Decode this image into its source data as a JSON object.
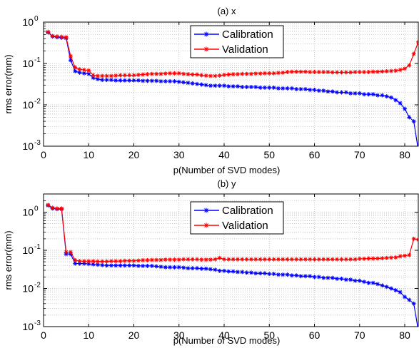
{
  "chart_data": [
    {
      "type": "line",
      "title": "(a) x",
      "xlabel": "p(Number of SVD modes)",
      "ylabel": "rms error(mm)",
      "xlim": [
        0,
        83
      ],
      "ylim": [
        0.001,
        1
      ],
      "yscale": "log",
      "xticks": [
        0,
        10,
        20,
        30,
        40,
        50,
        60,
        70,
        80
      ],
      "ytick_labels": [
        "10",
        "10",
        "10",
        "10"
      ],
      "ytick_exponents": [
        "-3",
        "-2",
        "-1",
        "0"
      ],
      "ytick_values": [
        0.001,
        0.01,
        0.1,
        1
      ],
      "grid": true,
      "legend_position": "top-center",
      "series": [
        {
          "name": "Calibration",
          "color": "#0000ff",
          "marker": "star",
          "x": [
            1,
            2,
            3,
            4,
            5,
            6,
            7,
            8,
            9,
            10,
            11,
            12,
            13,
            14,
            15,
            16,
            17,
            18,
            19,
            20,
            21,
            22,
            23,
            24,
            25,
            26,
            27,
            28,
            29,
            30,
            31,
            32,
            33,
            34,
            35,
            36,
            37,
            38,
            39,
            40,
            41,
            42,
            43,
            44,
            45,
            46,
            47,
            48,
            49,
            50,
            51,
            52,
            53,
            54,
            55,
            56,
            57,
            58,
            59,
            60,
            61,
            62,
            63,
            64,
            65,
            66,
            67,
            68,
            69,
            70,
            71,
            72,
            73,
            74,
            75,
            76,
            77,
            78,
            79,
            80,
            81,
            82,
            83
          ],
          "y": [
            0.56,
            0.45,
            0.43,
            0.42,
            0.41,
            0.12,
            0.065,
            0.06,
            0.058,
            0.056,
            0.045,
            0.042,
            0.04,
            0.04,
            0.04,
            0.039,
            0.039,
            0.039,
            0.039,
            0.039,
            0.039,
            0.038,
            0.038,
            0.038,
            0.038,
            0.037,
            0.037,
            0.037,
            0.037,
            0.036,
            0.035,
            0.034,
            0.033,
            0.032,
            0.031,
            0.03,
            0.029,
            0.029,
            0.029,
            0.029,
            0.028,
            0.028,
            0.028,
            0.027,
            0.027,
            0.027,
            0.027,
            0.026,
            0.026,
            0.026,
            0.026,
            0.025,
            0.025,
            0.025,
            0.025,
            0.024,
            0.024,
            0.024,
            0.023,
            0.023,
            0.022,
            0.022,
            0.021,
            0.021,
            0.02,
            0.02,
            0.02,
            0.019,
            0.019,
            0.019,
            0.018,
            0.018,
            0.018,
            0.017,
            0.017,
            0.016,
            0.015,
            0.013,
            0.011,
            0.008,
            0.005,
            0.004,
            0.0008
          ]
        },
        {
          "name": "Validation",
          "color": "#ff0000",
          "marker": "star",
          "x": [
            1,
            2,
            3,
            4,
            5,
            6,
            7,
            8,
            9,
            10,
            11,
            12,
            13,
            14,
            15,
            16,
            17,
            18,
            19,
            20,
            21,
            22,
            23,
            24,
            25,
            26,
            27,
            28,
            29,
            30,
            31,
            32,
            33,
            34,
            35,
            36,
            37,
            38,
            39,
            40,
            41,
            42,
            43,
            44,
            45,
            46,
            47,
            48,
            49,
            50,
            51,
            52,
            53,
            54,
            55,
            56,
            57,
            58,
            59,
            60,
            61,
            62,
            63,
            64,
            65,
            66,
            67,
            68,
            69,
            70,
            71,
            72,
            73,
            74,
            75,
            76,
            77,
            78,
            79,
            80,
            81,
            82,
            83
          ],
          "y": [
            0.58,
            0.46,
            0.45,
            0.44,
            0.43,
            0.15,
            0.08,
            0.072,
            0.07,
            0.068,
            0.052,
            0.05,
            0.05,
            0.05,
            0.05,
            0.051,
            0.052,
            0.052,
            0.052,
            0.052,
            0.053,
            0.054,
            0.055,
            0.056,
            0.056,
            0.056,
            0.057,
            0.058,
            0.058,
            0.058,
            0.056,
            0.055,
            0.054,
            0.054,
            0.052,
            0.051,
            0.05,
            0.05,
            0.051,
            0.053,
            0.054,
            0.055,
            0.055,
            0.056,
            0.056,
            0.056,
            0.057,
            0.057,
            0.058,
            0.058,
            0.058,
            0.059,
            0.06,
            0.062,
            0.063,
            0.063,
            0.063,
            0.063,
            0.062,
            0.062,
            0.062,
            0.062,
            0.062,
            0.061,
            0.061,
            0.061,
            0.061,
            0.061,
            0.062,
            0.062,
            0.062,
            0.062,
            0.063,
            0.063,
            0.064,
            0.065,
            0.066,
            0.067,
            0.07,
            0.075,
            0.09,
            0.17,
            0.33
          ]
        }
      ]
    },
    {
      "type": "line",
      "title": "(b) y",
      "xlabel": "p(Number of SVD modes)",
      "ylabel": "rms error(mm)",
      "xlim": [
        0,
        83
      ],
      "ylim": [
        0.001,
        3
      ],
      "yscale": "log",
      "xticks": [
        0,
        10,
        20,
        30,
        40,
        50,
        60,
        70,
        80
      ],
      "ytick_labels": [
        "10",
        "10",
        "10",
        "10"
      ],
      "ytick_exponents": [
        "-3",
        "-2",
        "-1",
        "0"
      ],
      "ytick_values": [
        0.001,
        0.01,
        0.1,
        1
      ],
      "grid": true,
      "legend_position": "top-center",
      "series": [
        {
          "name": "Calibration",
          "color": "#0000ff",
          "marker": "star",
          "x": [
            1,
            2,
            3,
            4,
            5,
            6,
            7,
            8,
            9,
            10,
            11,
            12,
            13,
            14,
            15,
            16,
            17,
            18,
            19,
            20,
            21,
            22,
            23,
            24,
            25,
            26,
            27,
            28,
            29,
            30,
            31,
            32,
            33,
            34,
            35,
            36,
            37,
            38,
            39,
            40,
            41,
            42,
            43,
            44,
            45,
            46,
            47,
            48,
            49,
            50,
            51,
            52,
            53,
            54,
            55,
            56,
            57,
            58,
            59,
            60,
            61,
            62,
            63,
            64,
            65,
            66,
            67,
            68,
            69,
            70,
            71,
            72,
            73,
            74,
            75,
            76,
            77,
            78,
            79,
            80,
            81,
            82,
            83
          ],
          "y": [
            1.5,
            1.25,
            1.2,
            1.2,
            0.08,
            0.08,
            0.045,
            0.045,
            0.045,
            0.044,
            0.043,
            0.042,
            0.041,
            0.04,
            0.04,
            0.04,
            0.04,
            0.04,
            0.04,
            0.04,
            0.039,
            0.039,
            0.039,
            0.039,
            0.038,
            0.037,
            0.036,
            0.036,
            0.036,
            0.036,
            0.035,
            0.034,
            0.034,
            0.034,
            0.033,
            0.033,
            0.032,
            0.031,
            0.029,
            0.029,
            0.028,
            0.028,
            0.027,
            0.027,
            0.026,
            0.026,
            0.025,
            0.025,
            0.025,
            0.024,
            0.024,
            0.023,
            0.023,
            0.023,
            0.022,
            0.022,
            0.021,
            0.021,
            0.021,
            0.02,
            0.02,
            0.019,
            0.019,
            0.019,
            0.018,
            0.018,
            0.017,
            0.017,
            0.016,
            0.016,
            0.015,
            0.014,
            0.014,
            0.013,
            0.012,
            0.011,
            0.01,
            0.009,
            0.008,
            0.006,
            0.005,
            0.004,
            0.0008
          ]
        },
        {
          "name": "Validation",
          "color": "#ff0000",
          "marker": "star",
          "x": [
            1,
            2,
            3,
            4,
            5,
            6,
            7,
            8,
            9,
            10,
            11,
            12,
            13,
            14,
            15,
            16,
            17,
            18,
            19,
            20,
            21,
            22,
            23,
            24,
            25,
            26,
            27,
            28,
            29,
            30,
            31,
            32,
            33,
            34,
            35,
            36,
            37,
            38,
            39,
            40,
            41,
            42,
            43,
            44,
            45,
            46,
            47,
            48,
            49,
            50,
            51,
            52,
            53,
            54,
            55,
            56,
            57,
            58,
            59,
            60,
            61,
            62,
            63,
            64,
            65,
            66,
            67,
            68,
            69,
            70,
            71,
            72,
            73,
            74,
            75,
            76,
            77,
            78,
            79,
            80,
            81,
            82,
            83
          ],
          "y": [
            1.55,
            1.3,
            1.25,
            1.25,
            0.09,
            0.09,
            0.055,
            0.052,
            0.052,
            0.052,
            0.052,
            0.051,
            0.051,
            0.051,
            0.052,
            0.052,
            0.052,
            0.053,
            0.053,
            0.053,
            0.054,
            0.055,
            0.055,
            0.056,
            0.056,
            0.056,
            0.057,
            0.057,
            0.057,
            0.057,
            0.058,
            0.058,
            0.058,
            0.058,
            0.057,
            0.057,
            0.057,
            0.058,
            0.063,
            0.058,
            0.058,
            0.058,
            0.058,
            0.058,
            0.058,
            0.058,
            0.058,
            0.058,
            0.058,
            0.058,
            0.058,
            0.058,
            0.058,
            0.058,
            0.058,
            0.058,
            0.058,
            0.058,
            0.058,
            0.058,
            0.058,
            0.058,
            0.058,
            0.058,
            0.058,
            0.058,
            0.058,
            0.058,
            0.058,
            0.06,
            0.06,
            0.061,
            0.061,
            0.061,
            0.062,
            0.063,
            0.064,
            0.065,
            0.07,
            0.072,
            0.075,
            0.2,
            0.19
          ]
        }
      ]
    }
  ]
}
